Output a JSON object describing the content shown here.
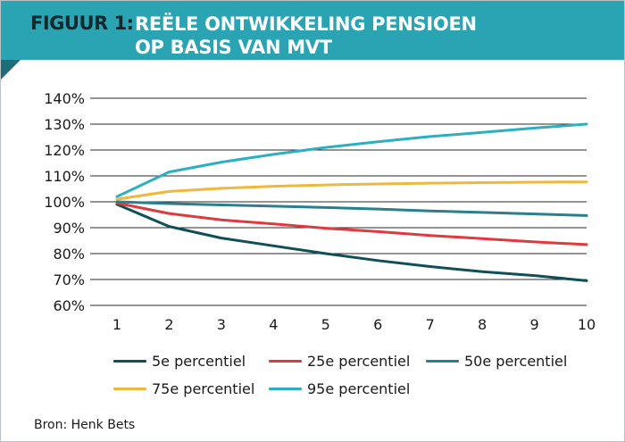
{
  "header": {
    "label": "FIGUUR 1:",
    "title_line1": "REËLE ONTWIKKELING PENSIOEN",
    "title_line2": "OP BASIS VAN MVT"
  },
  "colors": {
    "header_bg": "#2aa4b2",
    "grid": "#2a2a2a"
  },
  "chart_data": {
    "type": "line",
    "title": "REËLE ONTWIKKELING PENSIOEN OP BASIS VAN MVT",
    "xlabel": "",
    "ylabel": "",
    "x": [
      1,
      2,
      3,
      4,
      5,
      6,
      7,
      8,
      9,
      10
    ],
    "ylim": [
      60,
      140
    ],
    "yticks": [
      60,
      70,
      80,
      90,
      100,
      110,
      120,
      130,
      140
    ],
    "ytick_labels": [
      "60%",
      "70%",
      "80%",
      "90%",
      "100%",
      "110%",
      "120%",
      "130%",
      "140%"
    ],
    "xtick_labels": [
      "1",
      "2",
      "3",
      "4",
      "5",
      "6",
      "7",
      "8",
      "9",
      "10"
    ],
    "grid": true,
    "legend_position": "bottom",
    "series": [
      {
        "name": "5e percentiel",
        "color": "#0f4f57",
        "values": [
          99,
          90.5,
          86,
          83,
          80,
          77.3,
          75,
          73,
          71.5,
          69.5
        ]
      },
      {
        "name": "25e percentiel",
        "color": "#e0393e",
        "values": [
          99.5,
          95.5,
          93,
          91.5,
          89.8,
          88.5,
          87,
          85.8,
          84.5,
          83.5
        ]
      },
      {
        "name": "50e percentiel",
        "color": "#2a7f8c",
        "values": [
          100,
          99.3,
          98.8,
          98.3,
          97.8,
          97.2,
          96.5,
          95.9,
          95.3,
          94.7
        ]
      },
      {
        "name": "75e percentiel",
        "color": "#f0b73d",
        "values": [
          101,
          104,
          105.2,
          106,
          106.5,
          106.9,
          107.2,
          107.4,
          107.6,
          107.7
        ]
      },
      {
        "name": "95e percentiel",
        "color": "#2cb0bf",
        "values": [
          102,
          111.5,
          115.3,
          118.3,
          121,
          123.2,
          125.2,
          126.8,
          128.5,
          130
        ]
      }
    ]
  },
  "source": "Bron: Henk Bets"
}
